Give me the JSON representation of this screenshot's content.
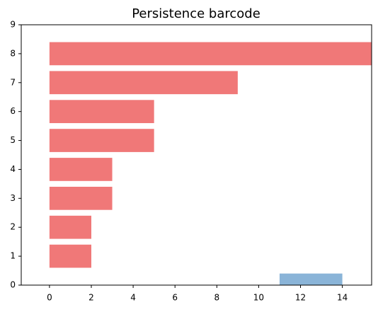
{
  "chart_data": {
    "type": "barcode",
    "title": "Persistence barcode",
    "y": [
      0,
      1,
      2,
      3,
      4,
      5,
      6,
      7,
      8
    ],
    "start": [
      11,
      0,
      0,
      0,
      0,
      0,
      0,
      0,
      0
    ],
    "end": [
      14,
      2,
      2,
      3,
      3,
      5,
      5,
      9,
      15.4
    ],
    "colors": [
      "#8ab4d8",
      "#f07878",
      "#f07878",
      "#f07878",
      "#f07878",
      "#f07878",
      "#f07878",
      "#f07878",
      "#f07878"
    ],
    "xlim": [
      -1.35,
      15.4
    ],
    "xticks": [
      0,
      2,
      4,
      6,
      8,
      10,
      12,
      14
    ],
    "ylim": [
      0,
      9
    ],
    "yticks": [
      0,
      1,
      2,
      3,
      4,
      5,
      6,
      7,
      8,
      9
    ]
  }
}
